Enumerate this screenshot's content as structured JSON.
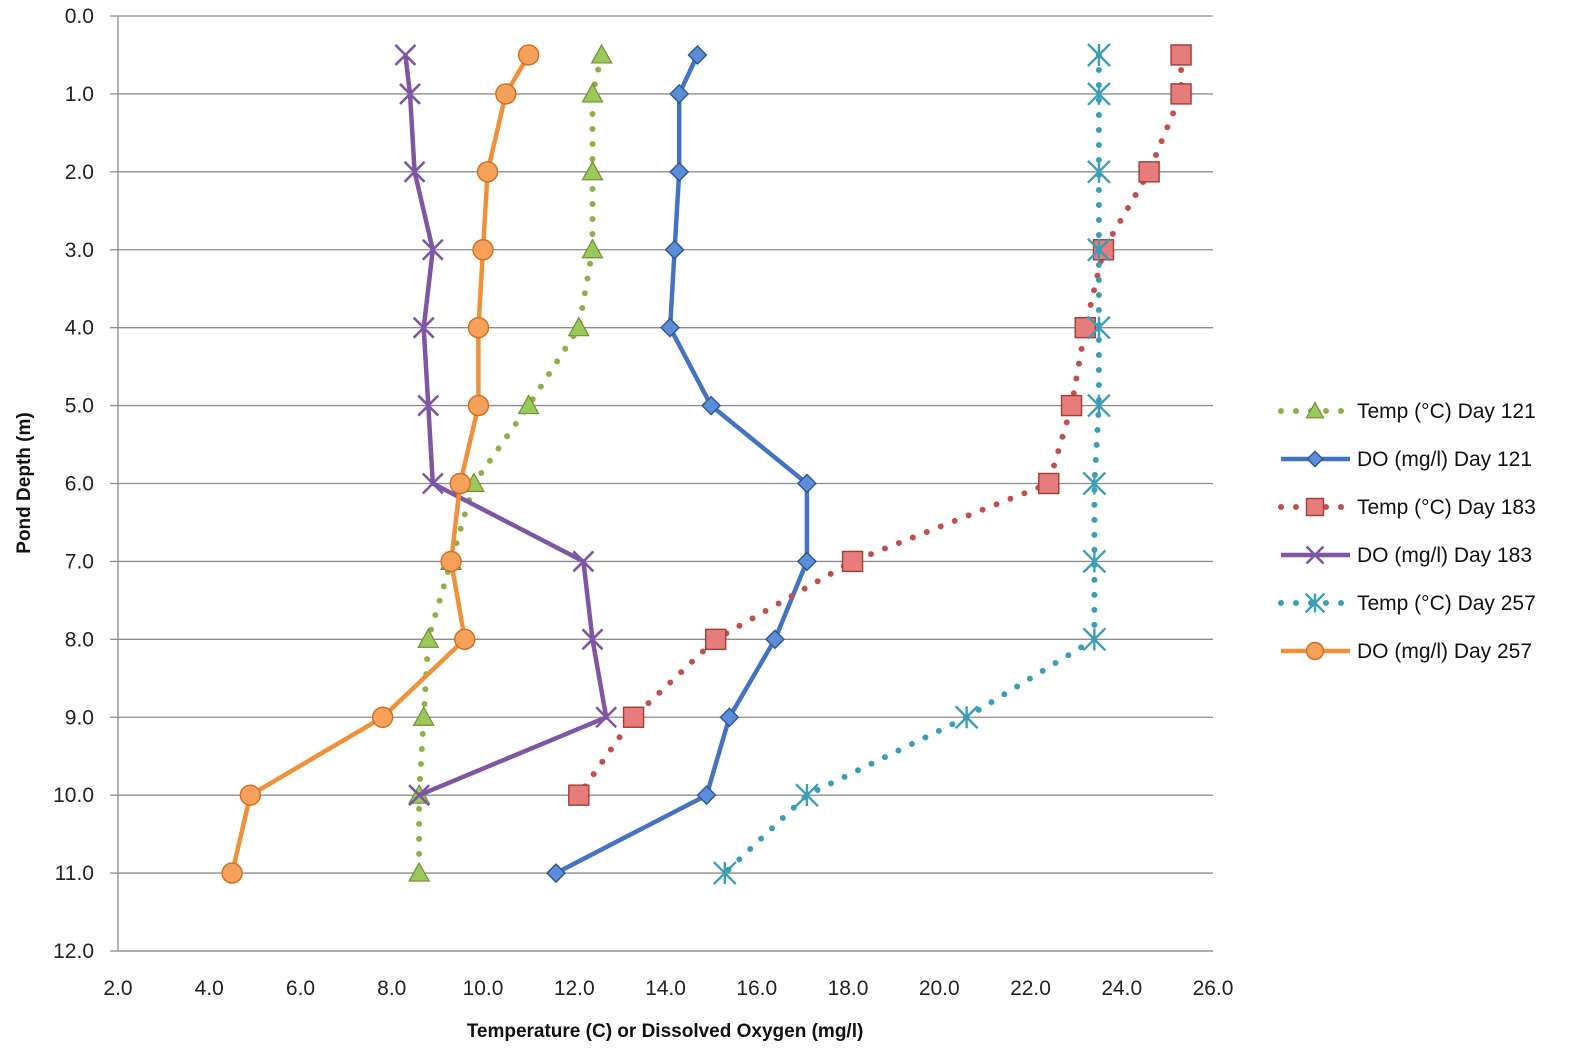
{
  "chart_data": {
    "type": "line",
    "title": "",
    "xlabel": "Temperature (C) or Dissolved Oxygen (mg/l)",
    "ylabel": "Pond Depth (m)",
    "xlim": [
      2.0,
      26.0
    ],
    "ylim": [
      0.0,
      12.0
    ],
    "y_inverted": true,
    "x_ticks": [
      "2.0",
      "4.0",
      "6.0",
      "8.0",
      "10.0",
      "12.0",
      "14.0",
      "16.0",
      "18.0",
      "20.0",
      "22.0",
      "24.0",
      "26.0"
    ],
    "y_ticks": [
      "0.0",
      "1.0",
      "2.0",
      "3.0",
      "4.0",
      "5.0",
      "6.0",
      "7.0",
      "8.0",
      "9.0",
      "10.0",
      "11.0",
      "12.0"
    ],
    "grid": "horizontal",
    "legend_position": "right",
    "series": [
      {
        "name": "Temp (°C) Day 121",
        "color": "#8DB04B",
        "line": "dotted",
        "marker": "triangle",
        "x": [
          12.6,
          12.4,
          12.4,
          12.4,
          12.1,
          11.0,
          9.8,
          9.3,
          8.8,
          8.7,
          8.6,
          8.6
        ],
        "y": [
          0.5,
          1.0,
          2.0,
          3.0,
          4.0,
          5.0,
          6.0,
          7.0,
          8.0,
          9.0,
          10.0,
          11.0
        ]
      },
      {
        "name": "DO (mg/l) Day 121",
        "color": "#4472C4",
        "line": "solid",
        "marker": "diamond",
        "x": [
          14.7,
          14.3,
          14.3,
          14.2,
          14.1,
          15.0,
          17.1,
          17.1,
          16.4,
          15.4,
          14.9,
          11.6
        ],
        "y": [
          0.5,
          1.0,
          2.0,
          3.0,
          4.0,
          5.0,
          6.0,
          7.0,
          8.0,
          9.0,
          10.0,
          11.0
        ]
      },
      {
        "name": "Temp (°C) Day 183",
        "color": "#C0504D",
        "line": "dotted",
        "marker": "square",
        "x": [
          25.3,
          25.3,
          24.6,
          23.6,
          23.2,
          22.9,
          22.4,
          18.1,
          15.1,
          13.3,
          12.1
        ],
        "y": [
          0.5,
          1.0,
          2.0,
          3.0,
          4.0,
          5.0,
          6.0,
          7.0,
          8.0,
          9.0,
          10.0
        ]
      },
      {
        "name": "DO (mg/l) Day 183",
        "color": "#7E56A4",
        "line": "solid",
        "marker": "x",
        "x": [
          8.3,
          8.4,
          8.5,
          8.9,
          8.7,
          8.8,
          8.9,
          12.2,
          12.4,
          12.7,
          8.6
        ],
        "y": [
          0.5,
          1.0,
          2.0,
          3.0,
          4.0,
          5.0,
          6.0,
          7.0,
          8.0,
          9.0,
          10.0
        ]
      },
      {
        "name": "Temp (°C) Day 257",
        "color": "#3A9EB8",
        "line": "dotted",
        "marker": "star",
        "x": [
          23.5,
          23.5,
          23.5,
          23.5,
          23.5,
          23.5,
          23.4,
          23.4,
          23.4,
          20.6,
          17.1,
          15.3
        ],
        "y": [
          0.5,
          1.0,
          2.0,
          3.0,
          4.0,
          5.0,
          6.0,
          7.0,
          8.0,
          9.0,
          10.0,
          11.0
        ]
      },
      {
        "name": "DO (mg/l) Day 257",
        "color": "#F0913A",
        "line": "solid",
        "marker": "circle",
        "x": [
          11.0,
          10.5,
          10.1,
          10.0,
          9.9,
          9.9,
          9.5,
          9.3,
          9.6,
          7.8,
          4.9,
          4.5
        ],
        "y": [
          0.5,
          1.0,
          2.0,
          3.0,
          4.0,
          5.0,
          6.0,
          7.0,
          8.0,
          9.0,
          10.0,
          11.0
        ]
      }
    ]
  }
}
